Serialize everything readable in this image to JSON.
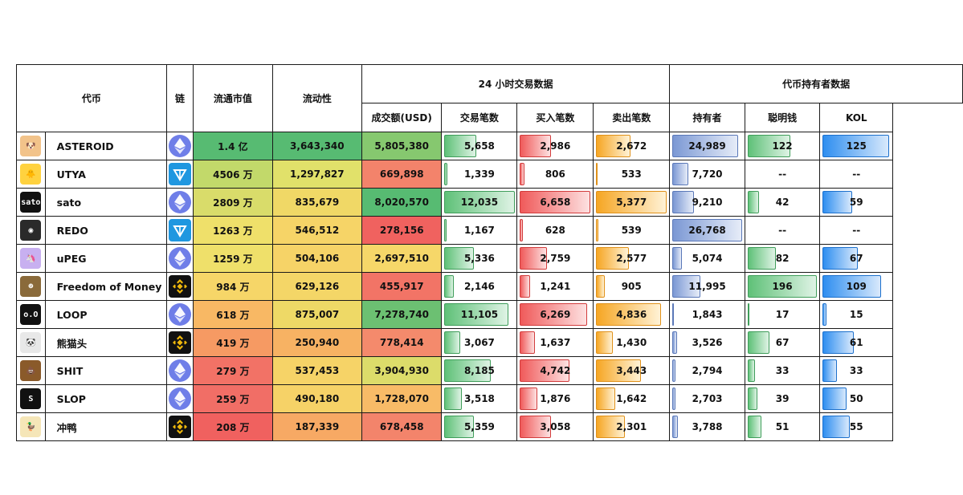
{
  "headers": {
    "token": "代币",
    "chain": "链",
    "market_cap": "流通市值",
    "liquidity": "流动性",
    "trading_group": "24 小时交易数据",
    "volume": "成交额(USD)",
    "txns": "交易笔数",
    "buys": "买入笔数",
    "sells": "卖出笔数",
    "holder_group": "代币持有者数据",
    "holders": "持有者",
    "smart_money": "聪明钱",
    "kol": "KOL"
  },
  "rows": [
    {
      "name": "ASTEROID",
      "avatar": "shiba-icon",
      "avatar_color": "#f2c38a",
      "chain": "ethereum-icon",
      "market_cap": "1.4 亿",
      "mc_color": "#57bb72",
      "liquidity": "3,643,340",
      "liq_color": "#57bb72",
      "volume": "5,805,380",
      "vol_color": "#86c86f",
      "txns": "5,658",
      "txns_f": 0.47,
      "buys": "2,986",
      "buys_f": 0.45,
      "sells": "2,672",
      "sells_f": 0.5,
      "holders": "24,989",
      "holders_f": 0.93,
      "smart": "122",
      "smart_f": 0.62,
      "kol": "125",
      "kol_f": 0.96
    },
    {
      "name": "UTYA",
      "avatar": "duck-icon",
      "avatar_color": "#ffd23f",
      "chain": "ton-icon",
      "market_cap": "4506 万",
      "mc_color": "#c2d96a",
      "liquidity": "1,297,827",
      "liq_color": "#e1e16a",
      "volume": "669,898",
      "vol_color": "#f3836b",
      "txns": "1,339",
      "txns_f": 0.08,
      "buys": "806",
      "buys_f": 0.1,
      "sells": "533",
      "sells_f": 0.06,
      "holders": "7,720",
      "holders_f": 0.26,
      "smart": "--",
      "smart_f": 0,
      "kol": "--",
      "kol_f": 0
    },
    {
      "name": "sato",
      "avatar": "sato-text-icon",
      "avatar_color": "#111111",
      "chain": "ethereum-icon",
      "market_cap": "2809 万",
      "mc_color": "#d9dc6a",
      "liquidity": "835,679",
      "liq_color": "#f0d866",
      "volume": "8,020,570",
      "vol_color": "#57bb72",
      "txns": "12,035",
      "txns_f": 0.98,
      "buys": "6,658",
      "buys_f": 0.98,
      "sells": "5,377",
      "sells_f": 0.98,
      "holders": "9,210",
      "holders_f": 0.33,
      "smart": "42",
      "smart_f": 0.2,
      "kol": "59",
      "kol_f": 0.45
    },
    {
      "name": "REDO",
      "avatar": "hooded-figure-icon",
      "avatar_color": "#2a2a2a",
      "chain": "ton-icon",
      "market_cap": "1263 万",
      "mc_color": "#efe06a",
      "liquidity": "546,512",
      "liq_color": "#f6d467",
      "volume": "278,156",
      "vol_color": "#f0625f",
      "txns": "1,167",
      "txns_f": 0.07,
      "buys": "628",
      "buys_f": 0.08,
      "sells": "539",
      "sells_f": 0.07,
      "holders": "26,768",
      "holders_f": 0.98,
      "smart": "--",
      "smart_f": 0,
      "kol": "--",
      "kol_f": 0
    },
    {
      "name": "uPEG",
      "avatar": "unicorn-icon",
      "avatar_color": "#c8b0f0",
      "chain": "ethereum-icon",
      "market_cap": "1259 万",
      "mc_color": "#efe06a",
      "liquidity": "504,106",
      "liq_color": "#f6d367",
      "volume": "2,697,510",
      "vol_color": "#f6d769",
      "txns": "5,336",
      "txns_f": 0.44,
      "buys": "2,759",
      "buys_f": 0.4,
      "sells": "2,577",
      "sells_f": 0.48,
      "holders": "5,074",
      "holders_f": 0.17,
      "smart": "82",
      "smart_f": 0.42,
      "kol": "67",
      "kol_f": 0.53
    },
    {
      "name": "Freedom of Money",
      "avatar": "portrait-icon",
      "avatar_color": "#8a6a3a",
      "chain": "bnb-icon",
      "market_cap": "984 万",
      "mc_color": "#f6d668",
      "liquidity": "629,126",
      "liq_color": "#f4d667",
      "volume": "455,917",
      "vol_color": "#f27466",
      "txns": "2,146",
      "txns_f": 0.17,
      "buys": "1,241",
      "buys_f": 0.18,
      "sells": "905",
      "sells_f": 0.16,
      "holders": "11,995",
      "holders_f": 0.42,
      "smart": "196",
      "smart_f": 0.98,
      "kol": "109",
      "kol_f": 0.85
    },
    {
      "name": "LOOP",
      "avatar": "loop-face-icon",
      "avatar_color": "#111111",
      "chain": "ethereum-icon",
      "market_cap": "618 万",
      "mc_color": "#f8b864",
      "liquidity": "875,007",
      "liq_color": "#eed966",
      "volume": "7,278,740",
      "vol_color": "#6cc072",
      "txns": "11,105",
      "txns_f": 0.9,
      "buys": "6,269",
      "buys_f": 0.93,
      "sells": "4,836",
      "sells_f": 0.9,
      "holders": "1,843",
      "holders_f": 0.05,
      "smart": "17",
      "smart_f": 0.06,
      "kol": "15",
      "kol_f": 0.1
    },
    {
      "name": "熊猫头",
      "avatar": "panda-face-icon",
      "avatar_color": "#e8e8e8",
      "chain": "bnb-icon",
      "market_cap": "419 万",
      "mc_color": "#f69a63",
      "liquidity": "250,940",
      "liq_color": "#f7b263",
      "volume": "778,414",
      "vol_color": "#f48a6c",
      "txns": "3,067",
      "txns_f": 0.25,
      "buys": "1,637",
      "buys_f": 0.24,
      "sells": "1,430",
      "sells_f": 0.26,
      "holders": "3,526",
      "holders_f": 0.11,
      "smart": "67",
      "smart_f": 0.34,
      "kol": "61",
      "kol_f": 0.48
    },
    {
      "name": "SHIT",
      "avatar": "poop-icon",
      "avatar_color": "#8a5a2a",
      "chain": "ethereum-icon",
      "market_cap": "279 万",
      "mc_color": "#f27266",
      "liquidity": "537,453",
      "liq_color": "#f6d367",
      "volume": "3,904,930",
      "vol_color": "#dcdc6a",
      "txns": "8,185",
      "txns_f": 0.66,
      "buys": "4,742",
      "buys_f": 0.7,
      "sells": "3,443",
      "sells_f": 0.64,
      "holders": "2,794",
      "holders_f": 0.08,
      "smart": "33",
      "smart_f": 0.14,
      "kol": "33",
      "kol_f": 0.24
    },
    {
      "name": "SLOP",
      "avatar": "slop-s-icon",
      "avatar_color": "#111111",
      "chain": "ethereum-icon",
      "market_cap": "259 万",
      "mc_color": "#f16e66",
      "liquidity": "490,180",
      "liq_color": "#f6d267",
      "volume": "1,728,070",
      "vol_color": "#f8bb67",
      "txns": "3,518",
      "txns_f": 0.28,
      "buys": "1,876",
      "buys_f": 0.27,
      "sells": "1,642",
      "sells_f": 0.3,
      "holders": "2,703",
      "holders_f": 0.08,
      "smart": "39",
      "smart_f": 0.17,
      "kol": "50",
      "kol_f": 0.38
    },
    {
      "name": "冲鸭",
      "avatar": "cartoon-duck-icon",
      "avatar_color": "#f5e6b8",
      "chain": "bnb-icon",
      "market_cap": "208 万",
      "mc_color": "#f0615f",
      "liquidity": "187,339",
      "liq_color": "#f7a964",
      "volume": "678,458",
      "vol_color": "#f3846b",
      "txns": "5,359",
      "txns_f": 0.44,
      "buys": "3,058",
      "buys_f": 0.45,
      "sells": "2,301",
      "sells_f": 0.42,
      "holders": "3,788",
      "holders_f": 0.12,
      "smart": "51",
      "smart_f": 0.23,
      "kol": "55",
      "kol_f": 0.42
    }
  ]
}
